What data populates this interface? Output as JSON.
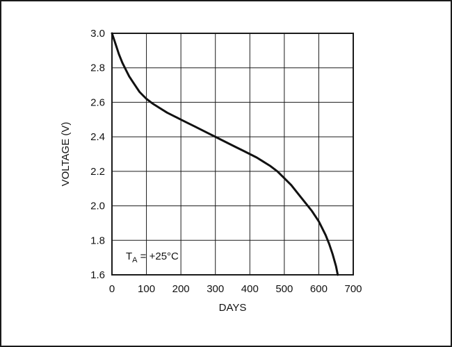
{
  "chart_data": {
    "type": "line",
    "xlabel": "DAYS",
    "ylabel": "VOLTAGE (V)",
    "xlim": [
      0,
      700
    ],
    "ylim": [
      1.6,
      3.0
    ],
    "grid": true,
    "x_ticks": [
      0,
      100,
      200,
      300,
      400,
      500,
      600,
      700
    ],
    "y_ticks": [
      1.6,
      1.8,
      2.0,
      2.2,
      2.4,
      2.6,
      2.8,
      3.0
    ],
    "x_tick_labels": [
      "0",
      "100",
      "200",
      "300",
      "400",
      "500",
      "600",
      "700"
    ],
    "y_tick_labels": [
      "1.6",
      "1.8",
      "2.0",
      "2.2",
      "2.4",
      "2.6",
      "2.8",
      "3.0"
    ],
    "annotation": {
      "text_main": "T",
      "text_sub": "A",
      "text_rest": " = +25°C"
    },
    "series": [
      {
        "color": "#111111",
        "x": [
          0,
          10,
          20,
          30,
          40,
          50,
          60,
          70,
          80,
          90,
          100,
          120,
          140,
          160,
          180,
          200,
          220,
          240,
          260,
          280,
          300,
          320,
          340,
          360,
          380,
          400,
          420,
          440,
          460,
          480,
          500,
          520,
          540,
          560,
          580,
          600,
          610,
          620,
          630,
          640,
          650,
          655
        ],
        "y": [
          3.0,
          2.94,
          2.88,
          2.83,
          2.79,
          2.75,
          2.72,
          2.69,
          2.66,
          2.64,
          2.62,
          2.59,
          2.565,
          2.54,
          2.52,
          2.5,
          2.48,
          2.46,
          2.44,
          2.42,
          2.4,
          2.38,
          2.36,
          2.34,
          2.32,
          2.3,
          2.28,
          2.255,
          2.23,
          2.2,
          2.16,
          2.12,
          2.07,
          2.02,
          1.97,
          1.91,
          1.87,
          1.83,
          1.78,
          1.72,
          1.65,
          1.6
        ]
      }
    ]
  }
}
